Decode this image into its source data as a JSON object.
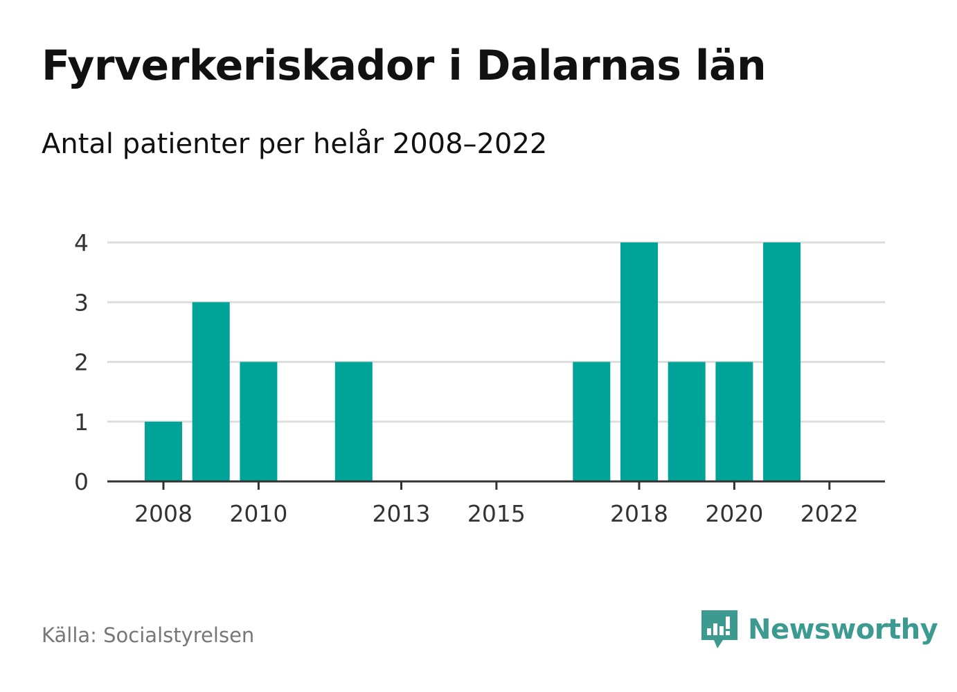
{
  "title": "Fyrverkeriskador i Dalarnas län",
  "subtitle": "Antal patienter per helår 2008–2022",
  "source": "Källa: Socialstyrelsen",
  "brand": {
    "name": "Newsworthy",
    "icon": "newsworthy-logo-icon",
    "color": "#3d9a91"
  },
  "colors": {
    "bar": "#00a398",
    "grid": "#dddddd",
    "axis": "#333333"
  },
  "chart_data": {
    "type": "bar",
    "title": "Fyrverkeriskador i Dalarnas län",
    "subtitle": "Antal patienter per helår 2008–2022",
    "categories": [
      "2008",
      "2009",
      "2010",
      "2011",
      "2012",
      "2013",
      "2014",
      "2015",
      "2016",
      "2017",
      "2018",
      "2019",
      "2020",
      "2021",
      "2022"
    ],
    "values": [
      1,
      3,
      2,
      0,
      2,
      0,
      0,
      0,
      0,
      2,
      4,
      2,
      2,
      4,
      0
    ],
    "x_tick_labels": [
      "2008",
      "2010",
      "2013",
      "2015",
      "2018",
      "2020",
      "2022"
    ],
    "y_ticks": [
      0,
      1,
      2,
      3,
      4
    ],
    "ylim": [
      0,
      4
    ],
    "xlabel": "",
    "ylabel": "",
    "grid": true,
    "legend": "none"
  }
}
